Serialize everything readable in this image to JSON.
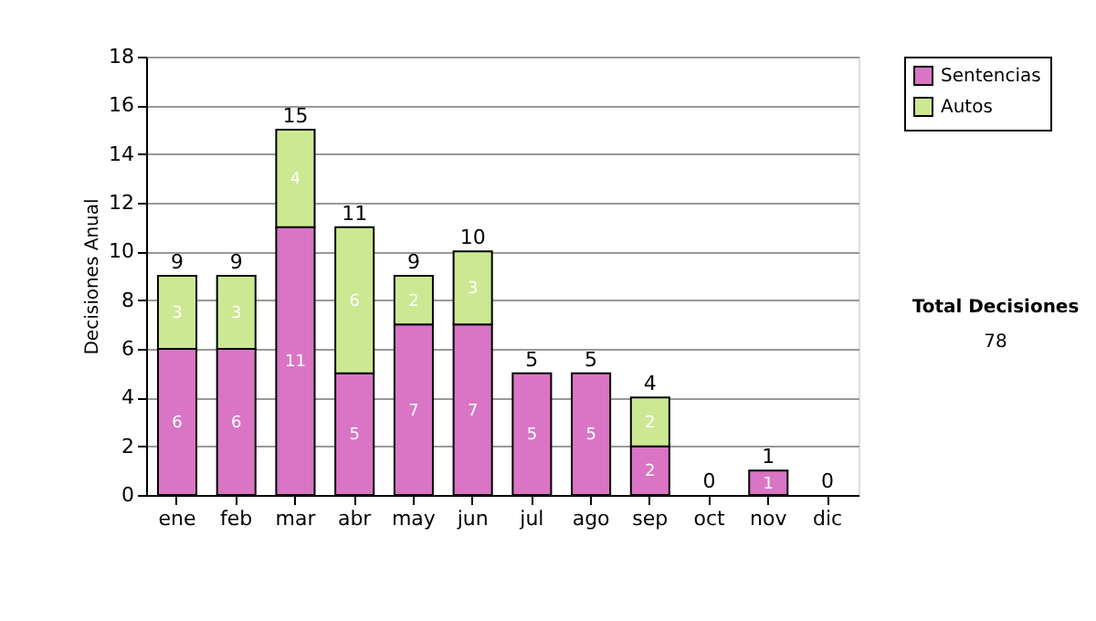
{
  "chart_data": {
    "type": "bar",
    "stacked": true,
    "ylabel": "Decisiones Anual",
    "categories": [
      "ene",
      "feb",
      "mar",
      "abr",
      "may",
      "jun",
      "jul",
      "ago",
      "sep",
      "oct",
      "nov",
      "dic"
    ],
    "series": [
      {
        "name": "Sentencias",
        "color": "#d975c4",
        "values": [
          6,
          6,
          11,
          5,
          7,
          7,
          5,
          5,
          2,
          0,
          1,
          0
        ],
        "value_labels": [
          "6",
          "6",
          "11",
          "5",
          "7",
          "7",
          "5",
          "5",
          "2",
          null,
          "1",
          null
        ]
      },
      {
        "name": "Autos",
        "color": "#cde892",
        "values": [
          3,
          3,
          4,
          6,
          2,
          3,
          0,
          0,
          2,
          0,
          0,
          0
        ],
        "value_labels": [
          "3",
          "3",
          "4",
          "6",
          "2",
          "3",
          null,
          null,
          "2",
          null,
          null,
          null
        ]
      }
    ],
    "totals": [
      "9",
      "9",
      "15",
      "11",
      "9",
      "10",
      "5",
      "5",
      "4",
      "0",
      "1",
      "0"
    ],
    "data_labels": true,
    "ylim": [
      0,
      18
    ],
    "yticks": [
      0,
      2,
      4,
      6,
      8,
      10,
      12,
      14,
      16,
      18
    ],
    "grid": "y",
    "legend": "right",
    "annotations": [
      "Total Decisiones",
      "78"
    ]
  }
}
